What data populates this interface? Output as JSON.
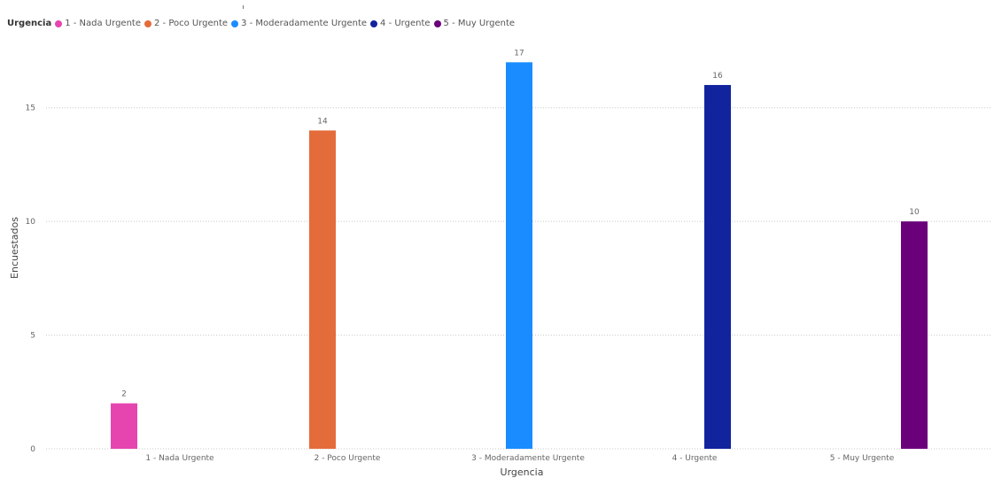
{
  "legend": {
    "title": "Urgencia",
    "items": [
      {
        "label": "1 - Nada Urgente",
        "color": "#E645B0"
      },
      {
        "label": "2 - Poco Urgente",
        "color": "#E46C3A"
      },
      {
        "label": "3 - Moderadamente Urgente",
        "color": "#1A8CFF"
      },
      {
        "label": "4 - Urgente",
        "color": "#12239E"
      },
      {
        "label": "5 - Muy Urgente",
        "color": "#6B007B"
      }
    ]
  },
  "chart_data": {
    "type": "bar",
    "title": "",
    "xlabel": "Urgencia",
    "ylabel": "Encuestados",
    "categories": [
      "1 - Nada Urgente",
      "2 - Poco Urgente",
      "3 - Moderadamente Urgente",
      "4 - Urgente",
      "5 - Muy Urgente"
    ],
    "values": [
      2,
      14,
      17,
      16,
      10
    ],
    "data_labels": [
      "2",
      "14",
      "17",
      "16",
      "10"
    ],
    "colors": [
      "#E645B0",
      "#E46C3A",
      "#1A8CFF",
      "#12239E",
      "#6B007B"
    ],
    "ylim": [
      0,
      17.5
    ],
    "yticks": [
      0,
      5,
      10,
      15
    ],
    "ytick_labels": [
      "0",
      "5",
      "10",
      "15"
    ],
    "grid": true,
    "legend_position": "top-left"
  }
}
